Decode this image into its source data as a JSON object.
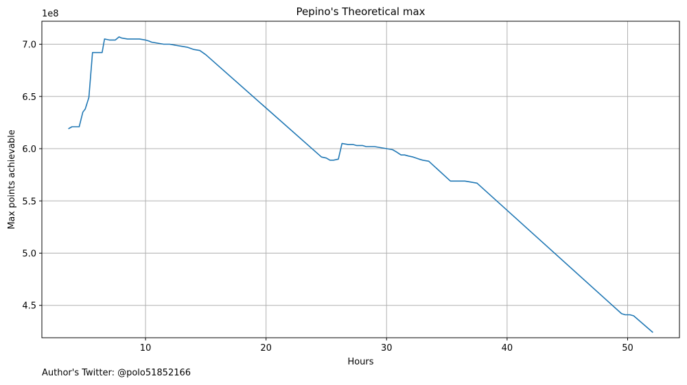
{
  "chart_data": {
    "type": "line",
    "title": "Pepino's Theoretical max",
    "xlabel": "Hours",
    "ylabel": "Max points achievable",
    "y_scale_label": "1e8",
    "xlim": [
      1.4,
      54.3
    ],
    "ylim": [
      4.19,
      7.22
    ],
    "x_ticks": [
      10,
      20,
      30,
      40,
      50
    ],
    "x_tick_labels": [
      "10",
      "20",
      "30",
      "40",
      "50"
    ],
    "y_ticks": [
      4.5,
      5.0,
      5.5,
      6.0,
      6.5,
      7.0
    ],
    "y_tick_labels": [
      "4.5",
      "5.0",
      "5.5",
      "6.0",
      "6.5",
      "7.0"
    ],
    "grid": true,
    "line_color": "#1f77b4",
    "series": [
      {
        "name": "Max points achievable",
        "x": [
          3.6,
          3.9,
          4.2,
          4.5,
          4.8,
          5.0,
          5.3,
          5.6,
          5.8,
          6.4,
          6.6,
          7.0,
          7.3,
          7.5,
          7.8,
          8.0,
          8.5,
          9.0,
          9.5,
          10.0,
          10.3,
          10.5,
          11.0,
          11.5,
          12.0,
          12.5,
          13.0,
          13.5,
          14.0,
          14.5,
          15.0,
          24.6,
          25.0,
          25.3,
          25.6,
          26.0,
          26.3,
          26.8,
          27.2,
          27.5,
          28.0,
          28.3,
          28.7,
          29.0,
          29.5,
          30.0,
          30.5,
          30.8,
          31.2,
          31.5,
          31.8,
          32.2,
          32.7,
          33.0,
          33.5,
          35.3,
          35.5,
          36.2,
          36.5,
          37.0,
          37.5,
          49.5,
          49.8,
          50.2,
          50.5,
          52.1
        ],
        "y": [
          6.19,
          6.21,
          6.21,
          6.21,
          6.35,
          6.38,
          6.49,
          6.92,
          6.92,
          6.92,
          7.05,
          7.04,
          7.04,
          7.04,
          7.07,
          7.06,
          7.05,
          7.05,
          7.05,
          7.04,
          7.03,
          7.02,
          7.01,
          7.0,
          7.0,
          6.99,
          6.98,
          6.97,
          6.95,
          6.94,
          6.9,
          5.92,
          5.91,
          5.89,
          5.89,
          5.9,
          6.05,
          6.04,
          6.04,
          6.03,
          6.03,
          6.02,
          6.02,
          6.02,
          6.01,
          6.0,
          5.99,
          5.97,
          5.94,
          5.94,
          5.93,
          5.92,
          5.9,
          5.89,
          5.88,
          5.69,
          5.69,
          5.69,
          5.69,
          5.68,
          5.67,
          4.42,
          4.41,
          4.41,
          4.4,
          4.24
        ]
      }
    ]
  },
  "footer": {
    "author_text": "Author's Twitter: @polo51852166"
  }
}
